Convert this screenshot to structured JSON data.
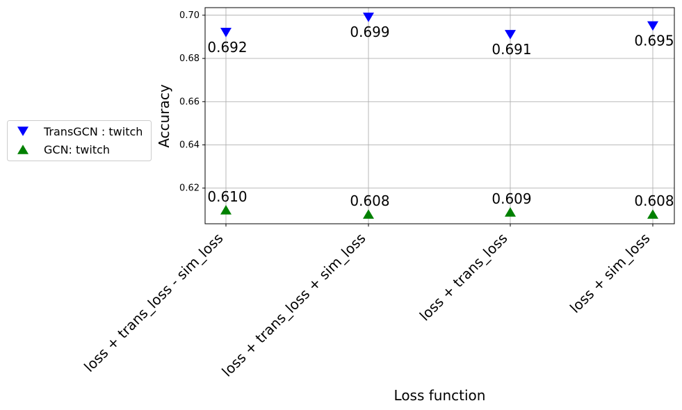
{
  "chart_data": {
    "type": "scatter",
    "categories": [
      "loss + trans_loss - sim_loss",
      "loss + trans_loss + sim_loss",
      "loss + trans_loss",
      "loss + sim_loss"
    ],
    "series": [
      {
        "name": "TransGCN : twitch",
        "values": [
          0.692,
          0.699,
          0.691,
          0.695
        ],
        "labels": [
          "0.692",
          "0.699",
          "0.691",
          "0.695"
        ],
        "marker": "triangle-down",
        "color": "#0000ff"
      },
      {
        "name": "GCN: twitch",
        "values": [
          0.61,
          0.608,
          0.609,
          0.608
        ],
        "labels": [
          "0.610",
          "0.608",
          "0.609",
          "0.608"
        ],
        "marker": "triangle-up",
        "color": "#008000"
      }
    ],
    "xlabel": "Loss function",
    "ylabel": "Accuracy",
    "ylim": [
      0.6035,
      0.7035
    ],
    "yticks": [
      0.62,
      0.64,
      0.66,
      0.68,
      0.7
    ],
    "ytick_labels": [
      "0.62",
      "0.64",
      "0.66",
      "0.68",
      "0.70"
    ],
    "grid": true,
    "legend_position": "outside-left",
    "grid_color": "#b0b0b0"
  }
}
